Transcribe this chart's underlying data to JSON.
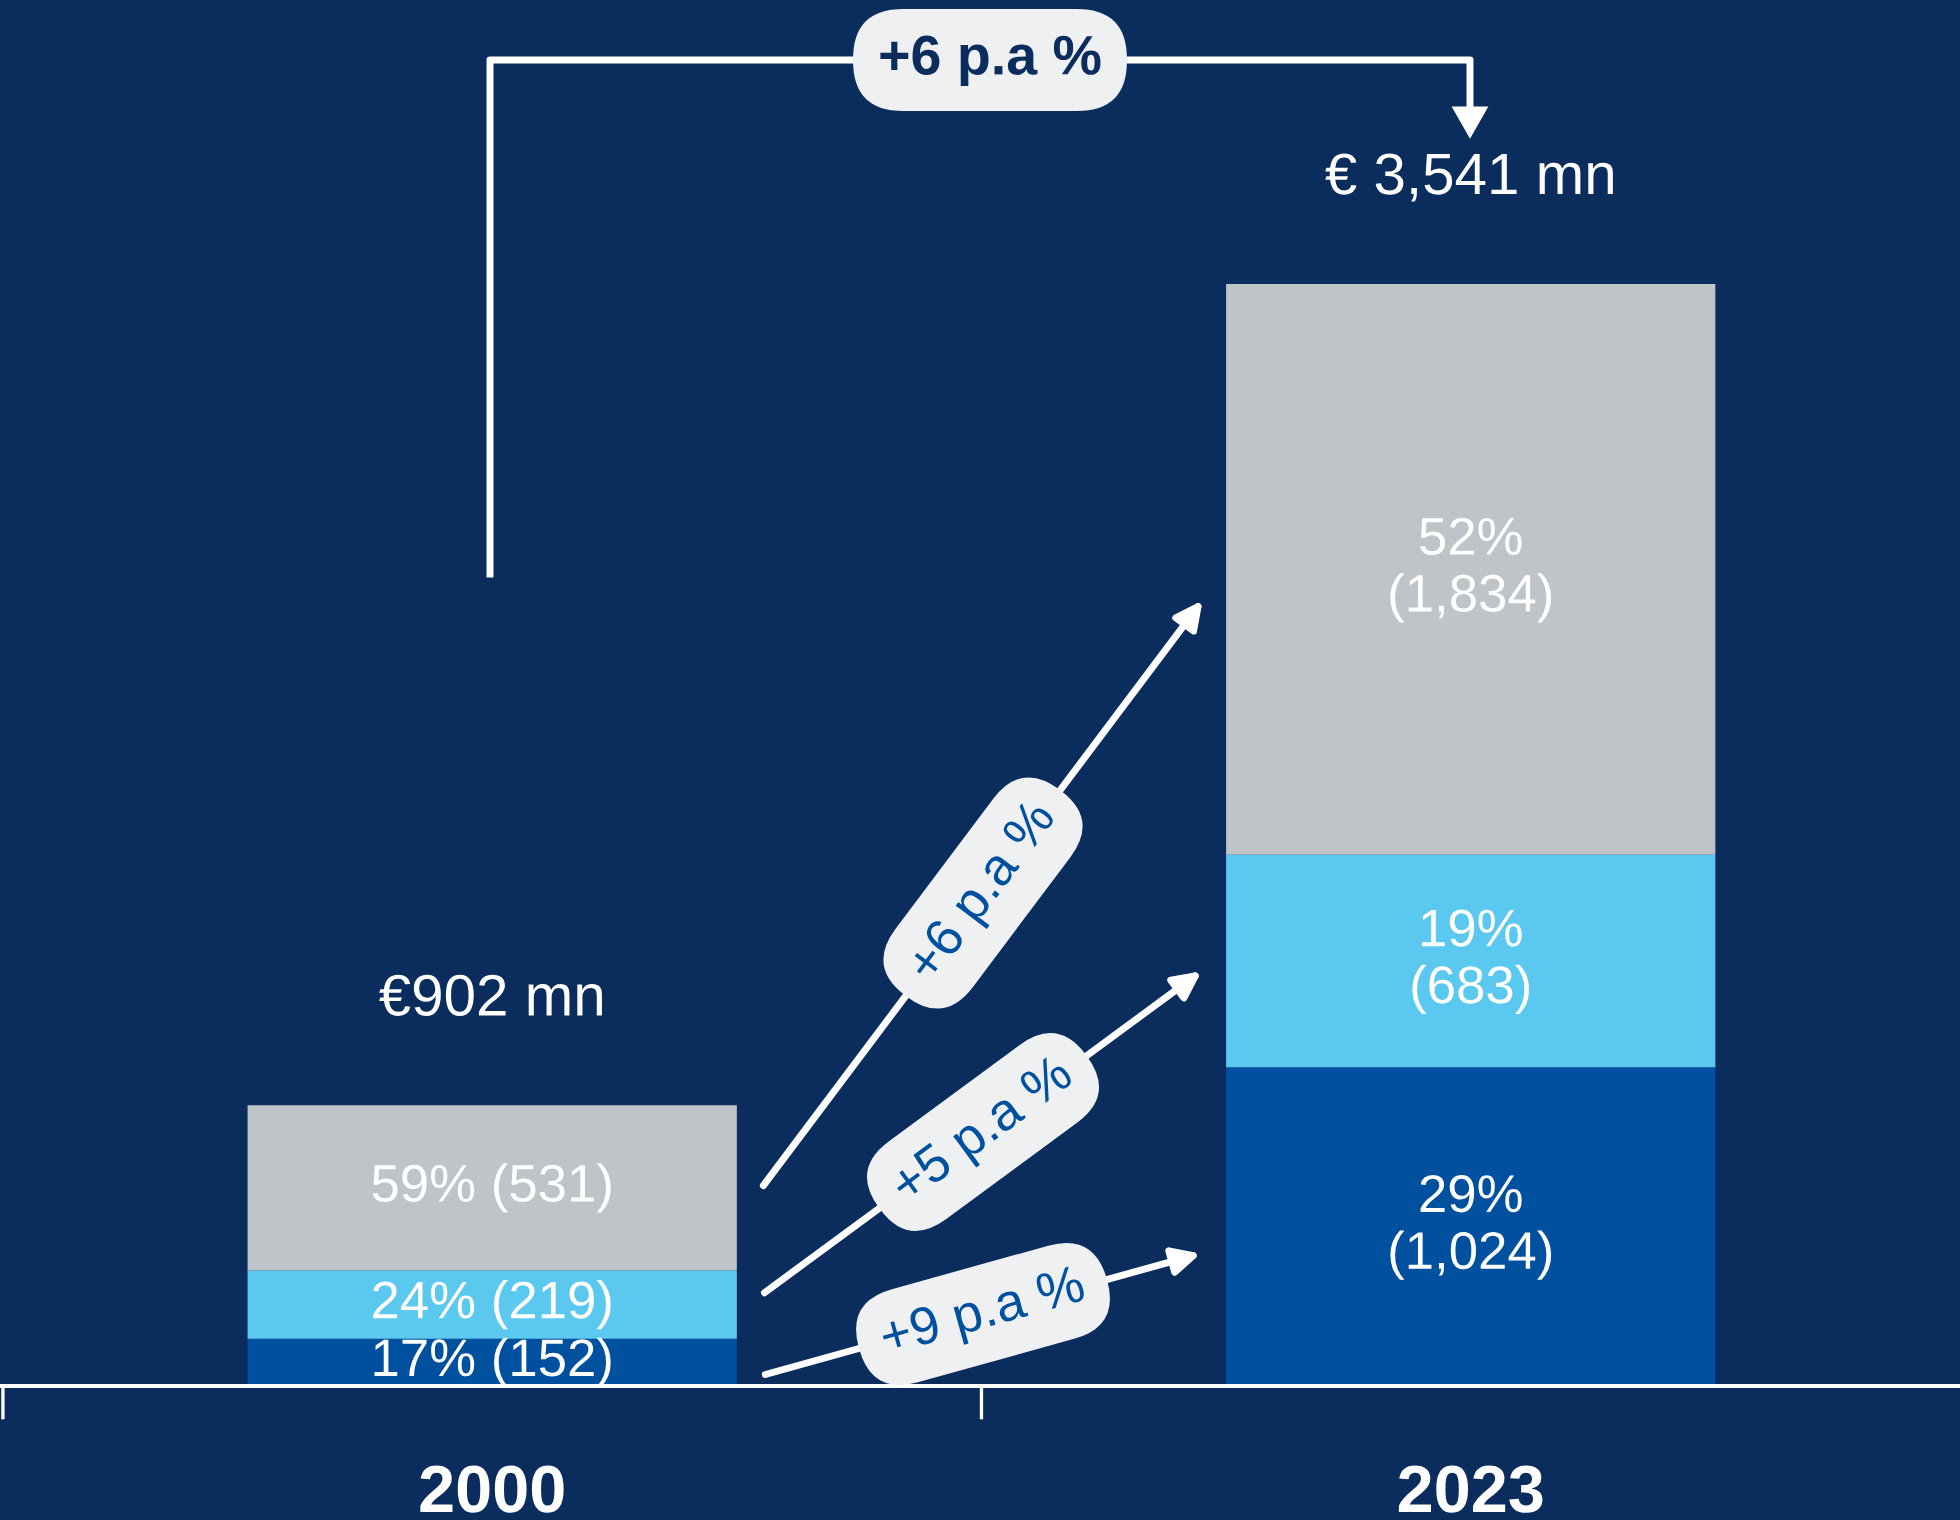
{
  "chart_data": {
    "type": "bar",
    "stacked": true,
    "categories": [
      "2000",
      "2023"
    ],
    "series": [
      {
        "color": "#0050a0",
        "values": [
          152,
          1024
        ],
        "value_labels": [
          "17% (152)",
          "29%\n(1,024)"
        ]
      },
      {
        "color": "#5bc8f0",
        "values": [
          219,
          683
        ],
        "value_labels": [
          "24% (219)",
          "19%\n(683)"
        ]
      },
      {
        "color": "#bfc4c8",
        "values": [
          531,
          1834
        ],
        "value_labels": [
          "59% (531)",
          "52%\n(1,834)"
        ]
      }
    ],
    "totals": [
      "€902 mn",
      "€ 3,541 mn"
    ],
    "annotations": [
      "+6 p.a %",
      "+6 p.a %",
      "+5 p.a %",
      "+9 p.a %"
    ]
  }
}
